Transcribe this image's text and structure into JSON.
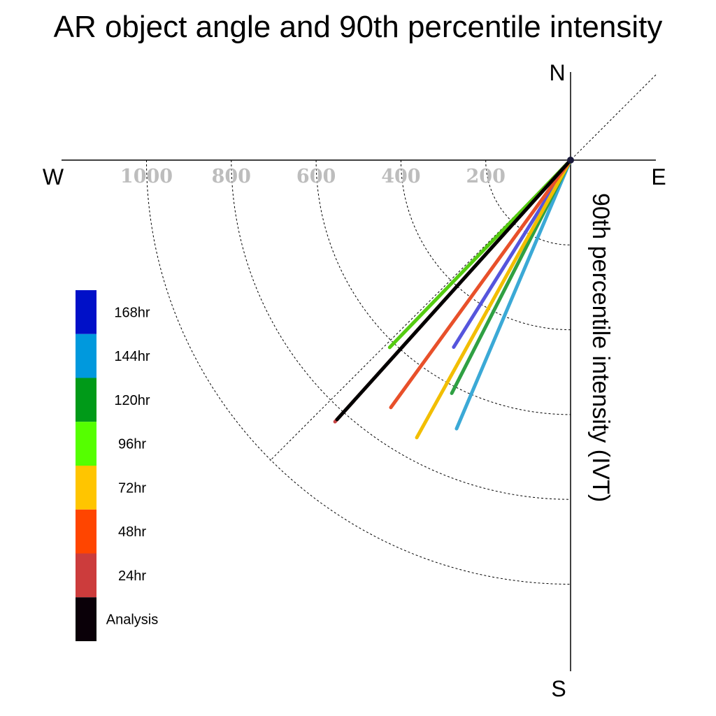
{
  "chart_data": {
    "type": "polar-vector",
    "title": "AR object angle and 90th percentile intensity",
    "ylabel": "90th percentile intensity (IVT)",
    "compass": {
      "north": "N",
      "south": "S",
      "east": "E",
      "west": "W"
    },
    "radial_ticks": [
      200,
      400,
      600,
      800,
      1000
    ],
    "radial_tick_labels": [
      "200",
      "400",
      "600",
      "800",
      "1000"
    ],
    "radial_range": [
      0,
      1000
    ],
    "legend": [
      {
        "label": "168hr",
        "color": "#0010C8"
      },
      {
        "label": "144hr",
        "color": "#0099DD"
      },
      {
        "label": "120hr",
        "color": "#009A18"
      },
      {
        "label": "96hr",
        "color": "#55FF00"
      },
      {
        "label": "72hr",
        "color": "#FFC500"
      },
      {
        "label": "48hr",
        "color": "#FF4500"
      },
      {
        "label": "24hr",
        "color": "#CC3C3C"
      },
      {
        "label": "Analysis",
        "color": "#0A0008"
      }
    ],
    "series": [
      {
        "name": "168hr",
        "color": "#5555DD",
        "angle_deg": 212,
        "intensity": 520
      },
      {
        "name": "144hr",
        "color": "#3BA9D6",
        "angle_deg": 203,
        "intensity": 688
      },
      {
        "name": "120hr",
        "color": "#2FA043",
        "angle_deg": 207,
        "intensity": 617
      },
      {
        "name": "96hr",
        "color": "#55CC11",
        "angle_deg": 224,
        "intensity": 614
      },
      {
        "name": "72hr",
        "color": "#F2BE00",
        "angle_deg": 209,
        "intensity": 748
      },
      {
        "name": "48hr",
        "color": "#E8502A",
        "angle_deg": 216,
        "intensity": 721
      },
      {
        "name": "24hr",
        "color": "#C84646",
        "angle_deg": 222,
        "intensity": 830
      },
      {
        "name": "Analysis",
        "color": "#000000",
        "angle_deg": 222,
        "intensity": 823
      }
    ]
  }
}
